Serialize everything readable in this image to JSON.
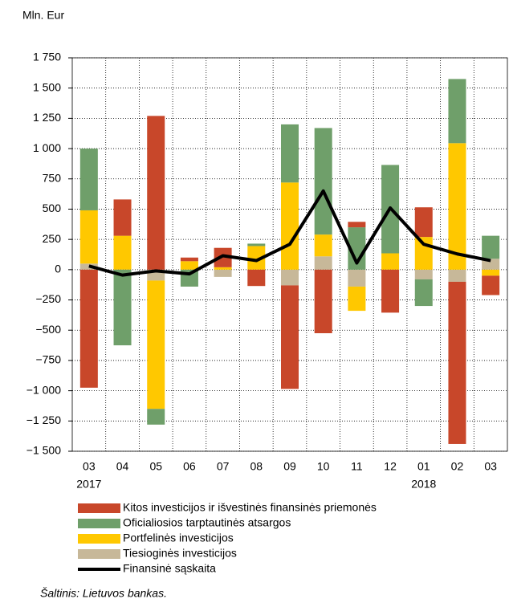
{
  "chart_data": {
    "type": "stacked_bar_line",
    "y_axis_label": "Mln. Eur",
    "categories": [
      "03",
      "04",
      "05",
      "06",
      "07",
      "08",
      "09",
      "10",
      "11",
      "12",
      "01",
      "02",
      "03"
    ],
    "category_years": [
      "2017",
      null,
      null,
      null,
      null,
      null,
      null,
      null,
      null,
      null,
      "2018",
      null,
      null
    ],
    "series": [
      {
        "name": "Kitos investicijos ir išvestinės finansinės priemonės",
        "color": "#c8472a",
        "values": [
          -975,
          300,
          1270,
          30,
          160,
          -135,
          -855,
          -525,
          45,
          -355,
          245,
          -1340,
          -160
        ]
      },
      {
        "name": "Oficialiosios tarptautinės atsargos",
        "color": "#6f9f6a",
        "values": [
          510,
          -625,
          -130,
          -140,
          0,
          20,
          480,
          880,
          350,
          730,
          -220,
          530,
          190
        ]
      },
      {
        "name": "Portfelinės investicijos",
        "color": "#ffc800",
        "values": [
          440,
          280,
          -1060,
          70,
          20,
          195,
          720,
          180,
          -200,
          135,
          270,
          1045,
          -50
        ]
      },
      {
        "name": "Tiesioginės investicijos",
        "color": "#c7b899",
        "values": [
          50,
          0,
          -90,
          0,
          -60,
          0,
          -130,
          110,
          -140,
          0,
          -80,
          -100,
          90
        ]
      }
    ],
    "line": {
      "name": "Finansinė sąskaita",
      "color": "#000000",
      "values": [
        30,
        -45,
        -10,
        -35,
        115,
        75,
        210,
        650,
        55,
        510,
        210,
        130,
        75
      ]
    },
    "ylim": [
      -1500,
      1750
    ],
    "yticks": [
      {
        "value": -1500,
        "label": "−1 500"
      },
      {
        "value": -1250,
        "label": "−1 250"
      },
      {
        "value": -1000,
        "label": "−1 000"
      },
      {
        "value": -750,
        "label": "−750"
      },
      {
        "value": -500,
        "label": "−500"
      },
      {
        "value": -250,
        "label": "−250"
      },
      0,
      250,
      500,
      750,
      {
        "value": 1000,
        "label": "1 000"
      },
      {
        "value": 1250,
        "label": "1 250"
      },
      {
        "value": 1500,
        "label": "1 500"
      },
      {
        "value": 1750,
        "label": "1 750"
      }
    ],
    "grid": true,
    "source": "Šaltinis: Lietuvos bankas."
  }
}
